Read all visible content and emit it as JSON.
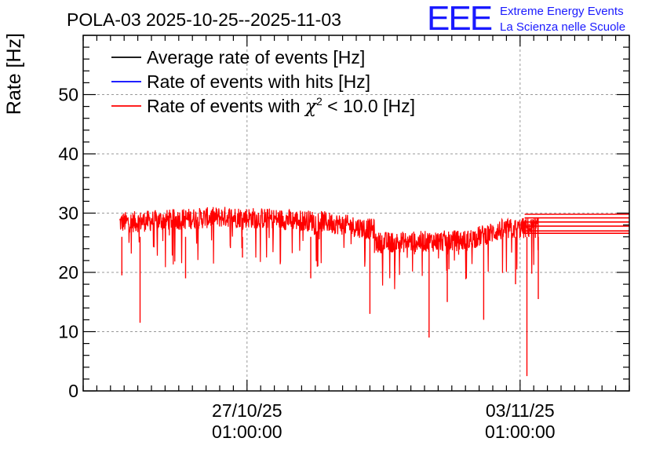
{
  "chart_data": {
    "type": "line",
    "title": "POLA-03 2025-10-25--2025-11-03",
    "xlabel": "",
    "ylabel": "Rate [Hz]",
    "x_range_hours": [
      0,
      240
    ],
    "ylim": [
      0,
      60
    ],
    "y_ticks": [
      0,
      10,
      20,
      30,
      40,
      50
    ],
    "x_ticks": [
      {
        "hours": 72,
        "label_date": "27/10/25",
        "label_time": "01:00:00"
      },
      {
        "hours": 192,
        "label_date": "03/11/25",
        "label_time": "01:00:00"
      }
    ],
    "grid": true,
    "legend_position": "top-left",
    "legend": [
      {
        "label": "Average rate of events [Hz]",
        "color": "#000000"
      },
      {
        "label": "Rate of events with hits [Hz]",
        "color": "#0000ff"
      },
      {
        "label_prefix": "Rate of events with ",
        "label_symbol": "χ",
        "label_sup": "2",
        "label_suffix": " < 10.0 [Hz]",
        "color": "#ff0000"
      }
    ],
    "series": [
      {
        "name": "Rate of events with chi2 < 10.0 [Hz]",
        "color": "#ff0000",
        "segments": [
          {
            "start_h": 16,
            "end_h": 64,
            "start_mean": 28.4,
            "end_mean": 29.4
          },
          {
            "start_h": 64,
            "end_h": 105,
            "start_mean": 29.4,
            "end_mean": 28.6
          },
          {
            "start_h": 105,
            "end_h": 128,
            "start_mean": 28.6,
            "end_mean": 27.2
          },
          {
            "start_h": 128,
            "end_h": 170,
            "start_mean": 25.0,
            "end_mean": 25.4
          },
          {
            "start_h": 170,
            "end_h": 184,
            "start_mean": 25.6,
            "end_mean": 27.2
          },
          {
            "start_h": 184,
            "end_h": 200,
            "start_mean": 27.2,
            "end_mean": 27.6
          }
        ],
        "spikes": [
          {
            "hours": 17,
            "value": 19.5
          },
          {
            "hours": 25,
            "value": 11.5
          },
          {
            "hours": 45,
            "value": 19.0
          },
          {
            "hours": 70,
            "value": 22.5
          },
          {
            "hours": 100,
            "value": 19.0
          },
          {
            "hours": 126,
            "value": 13.0
          },
          {
            "hours": 152,
            "value": 9.0
          },
          {
            "hours": 160,
            "value": 15.0
          },
          {
            "hours": 176,
            "value": 12.0
          },
          {
            "hours": 190,
            "value": 18.0
          },
          {
            "hours": 195,
            "value": 2.5
          },
          {
            "hours": 200,
            "value": 15.5
          }
        ],
        "flat_lines": [
          29.8,
          29.2,
          28.5,
          27.8,
          27.0,
          26.6
        ]
      }
    ]
  },
  "logo": {
    "mark": "EEE",
    "line1": "Extreme Energy Events",
    "line2": "La Scienza nelle Scuole",
    "color": "#1a1aff"
  }
}
